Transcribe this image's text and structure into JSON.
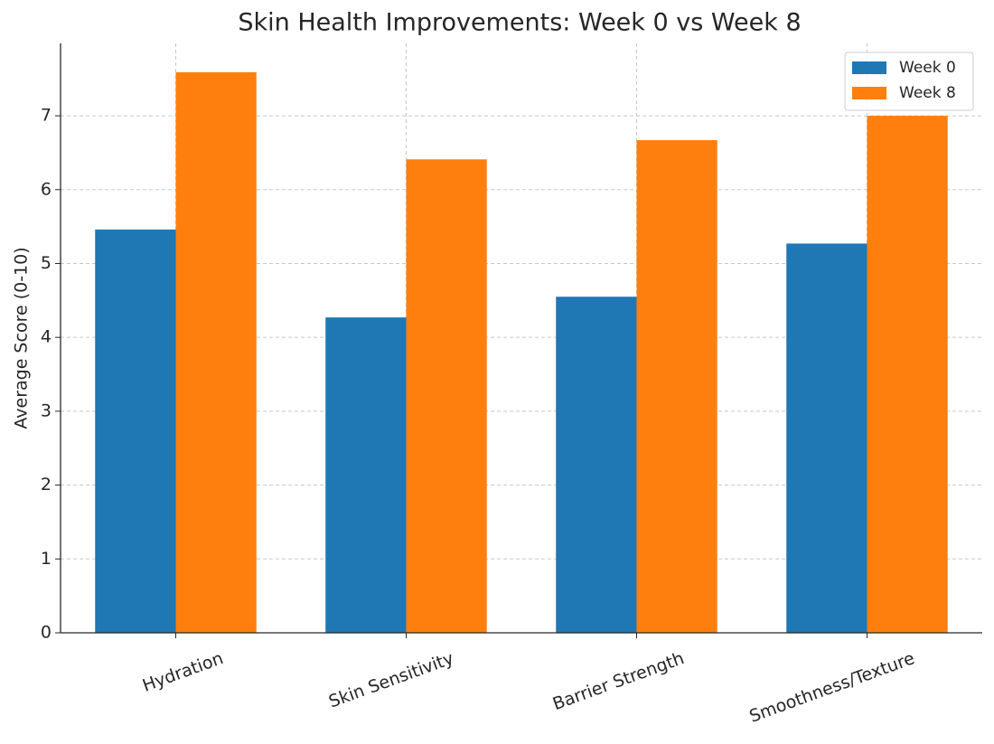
{
  "chart_data": {
    "type": "bar",
    "title": "Skin Health Improvements: Week 0 vs Week 8",
    "ylabel": "Average Score (0-10)",
    "categories": [
      "Hydration",
      "Skin Sensitivity",
      "Barrier Strength",
      "Smoothness/Texture"
    ],
    "series": [
      {
        "name": "Week 0",
        "color": "#1f77b4",
        "values": [
          5.46,
          4.27,
          4.55,
          5.27
        ]
      },
      {
        "name": "Week 8",
        "color": "#ff7f0e",
        "values": [
          7.59,
          6.41,
          6.67,
          7.0
        ]
      }
    ],
    "ylim": [
      0,
      7.98
    ],
    "yticks": [
      0,
      1,
      2,
      3,
      4,
      5,
      6,
      7
    ],
    "grid": true,
    "legend": "upper right"
  }
}
